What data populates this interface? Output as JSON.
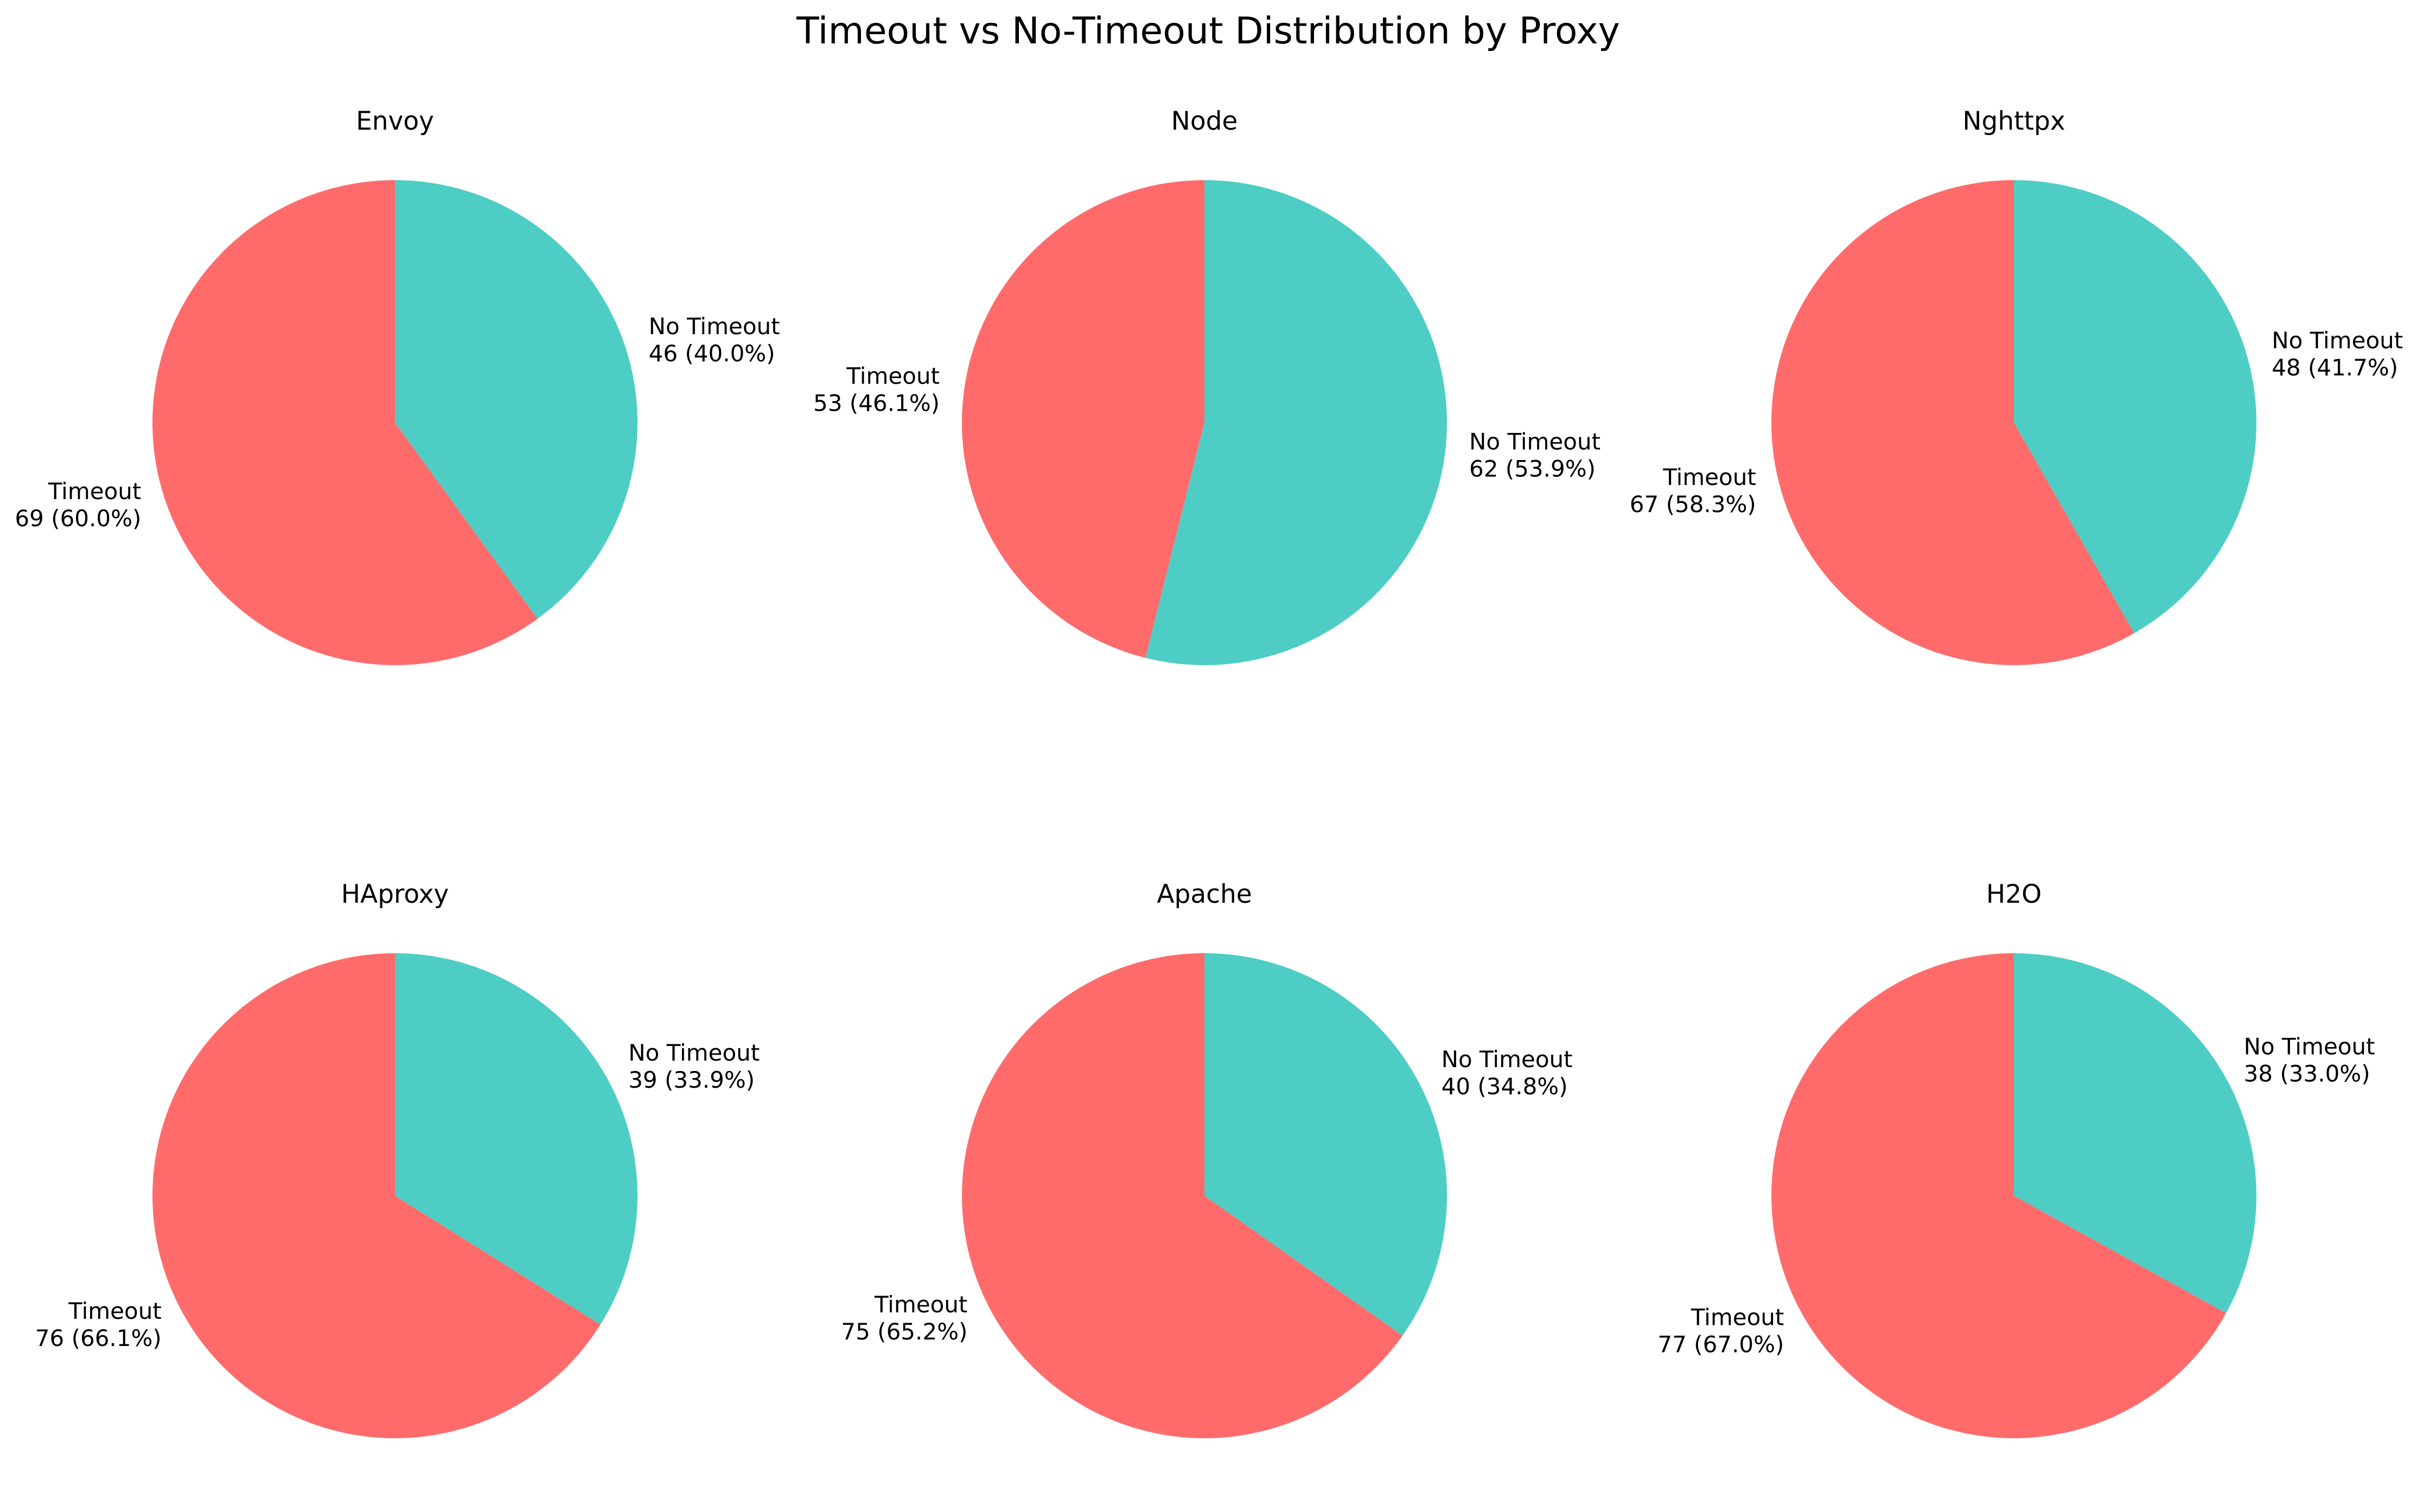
{
  "title": "Timeout vs No-Timeout Distribution by Proxy",
  "colors": {
    "timeout": "#FF6B6B",
    "no_timeout": "#4ECDC4"
  },
  "chart_data": [
    {
      "type": "pie",
      "title": "Envoy",
      "start_angle": 90,
      "direction": "counterclockwise",
      "slices": [
        {
          "label": "Timeout",
          "value": 69,
          "pct": "60.0%",
          "display": "69 (60.0%)",
          "color": "#FF6B6B"
        },
        {
          "label": "No Timeout",
          "value": 46,
          "pct": "40.0%",
          "display": "46 (40.0%)",
          "color": "#4ECDC4"
        }
      ]
    },
    {
      "type": "pie",
      "title": "Node",
      "start_angle": 90,
      "direction": "counterclockwise",
      "slices": [
        {
          "label": "Timeout",
          "value": 53,
          "pct": "46.1%",
          "display": "53 (46.1%)",
          "color": "#FF6B6B"
        },
        {
          "label": "No Timeout",
          "value": 62,
          "pct": "53.9%",
          "display": "62 (53.9%)",
          "color": "#4ECDC4"
        }
      ]
    },
    {
      "type": "pie",
      "title": "Nghttpx",
      "start_angle": 90,
      "direction": "counterclockwise",
      "slices": [
        {
          "label": "Timeout",
          "value": 67,
          "pct": "58.3%",
          "display": "67 (58.3%)",
          "color": "#FF6B6B"
        },
        {
          "label": "No Timeout",
          "value": 48,
          "pct": "41.7%",
          "display": "48 (41.7%)",
          "color": "#4ECDC4"
        }
      ]
    },
    {
      "type": "pie",
      "title": "HAproxy",
      "start_angle": 90,
      "direction": "counterclockwise",
      "slices": [
        {
          "label": "Timeout",
          "value": 76,
          "pct": "66.1%",
          "display": "76 (66.1%)",
          "color": "#FF6B6B"
        },
        {
          "label": "No Timeout",
          "value": 39,
          "pct": "33.9%",
          "display": "39 (33.9%)",
          "color": "#4ECDC4"
        }
      ]
    },
    {
      "type": "pie",
      "title": "Apache",
      "start_angle": 90,
      "direction": "counterclockwise",
      "slices": [
        {
          "label": "Timeout",
          "value": 75,
          "pct": "65.2%",
          "display": "75 (65.2%)",
          "color": "#FF6B6B"
        },
        {
          "label": "No Timeout",
          "value": 40,
          "pct": "34.8%",
          "display": "40 (34.8%)",
          "color": "#4ECDC4"
        }
      ]
    },
    {
      "type": "pie",
      "title": "H2O",
      "start_angle": 90,
      "direction": "counterclockwise",
      "slices": [
        {
          "label": "Timeout",
          "value": 77,
          "pct": "67.0%",
          "display": "77 (67.0%)",
          "color": "#FF6B6B"
        },
        {
          "label": "No Timeout",
          "value": 38,
          "pct": "33.0%",
          "display": "38 (33.0%)",
          "color": "#4ECDC4"
        }
      ]
    }
  ]
}
